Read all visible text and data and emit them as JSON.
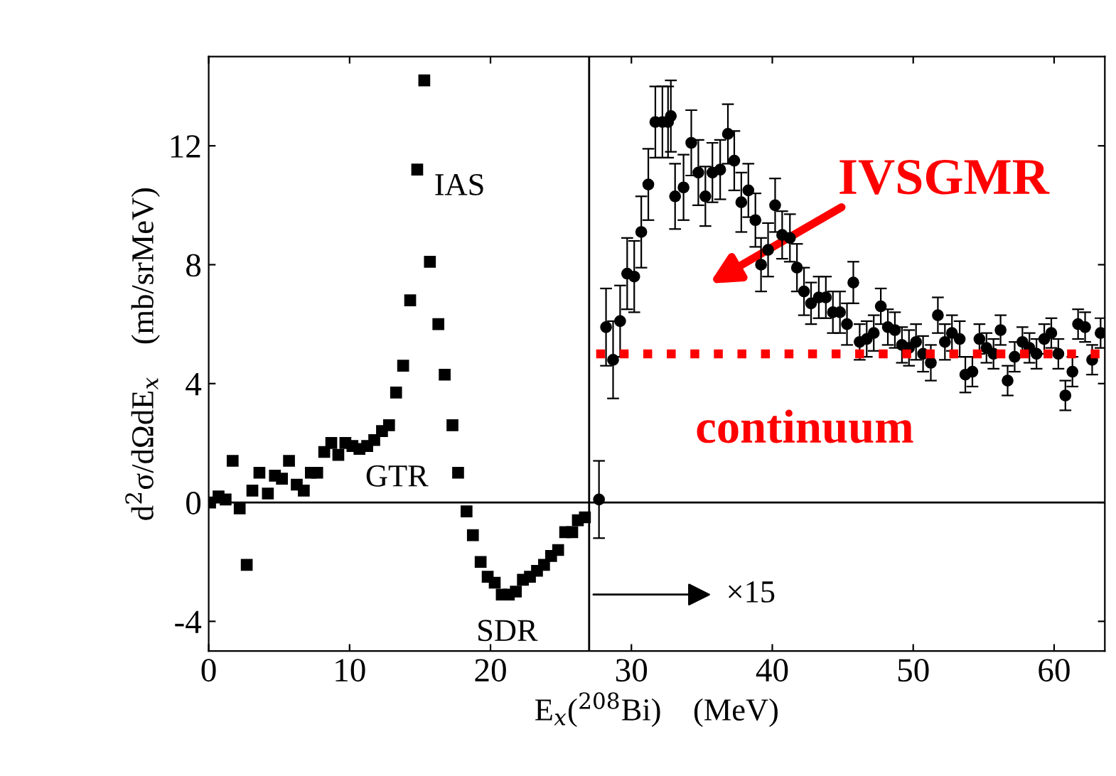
{
  "chart_data": {
    "type": "scatter",
    "xlabel": "E$_{x}$($^{208}$Bi)    (MeV)",
    "ylabel": "d$^{2}$σ/dΩdE$_{x}$    (mb/srMeV)",
    "xlim": [
      0,
      63.6
    ],
    "ylim": [
      -5,
      15
    ],
    "xticks": [
      0,
      10,
      20,
      30,
      40,
      50,
      60
    ],
    "yticks": [
      -4,
      0,
      4,
      8,
      12
    ],
    "grid": false,
    "legend": false,
    "series": [
      {
        "color": "#000000",
        "marker": "square",
        "x": [
          0.1,
          0.7,
          1.2,
          1.7,
          2.2,
          2.7,
          3.1,
          3.6,
          4.2,
          4.7,
          5.2,
          5.7,
          6.25,
          6.75,
          7.25,
          7.7,
          8.2,
          8.7,
          9.2,
          9.7,
          10.2,
          10.7,
          11.25,
          11.75,
          12.3,
          12.8,
          13.3,
          13.8,
          14.3,
          14.8,
          15.3,
          15.7,
          16.3,
          16.75,
          17.3,
          17.7,
          18.3,
          18.75,
          19.3,
          19.8,
          20.3,
          20.8,
          21.3,
          21.8,
          22.3,
          22.8,
          23.3,
          23.8,
          24.3,
          24.8,
          25.3,
          25.8,
          26.2,
          26.7
        ],
        "values": [
          0.0,
          0.2,
          0.1,
          1.4,
          -0.2,
          -2.1,
          0.4,
          1.0,
          0.3,
          0.9,
          0.8,
          1.4,
          0.6,
          0.4,
          1.0,
          1.0,
          1.7,
          2.0,
          1.6,
          2.0,
          1.9,
          1.8,
          1.9,
          2.1,
          2.4,
          2.6,
          3.7,
          4.6,
          6.8,
          11.2,
          14.2,
          8.1,
          6.0,
          4.3,
          2.6,
          1.0,
          -0.3,
          -1.1,
          -2.0,
          -2.5,
          -2.7,
          -3.1,
          -3.1,
          -3.0,
          -2.6,
          -2.5,
          -2.3,
          -2.1,
          -1.8,
          -1.6,
          -1.0,
          -1.0,
          -0.6,
          -0.5
        ]
      },
      {
        "color": "#000000",
        "marker": "circle",
        "x": [
          27.7,
          28.2,
          28.7,
          29.2,
          29.7,
          30.2,
          30.7,
          31.2,
          31.7,
          32.2,
          32.6,
          32.8,
          33.1,
          33.7,
          34.25,
          34.75,
          35.25,
          35.75,
          36.3,
          36.85,
          37.3,
          37.8,
          38.3,
          38.8,
          39.2,
          39.7,
          40.2,
          40.7,
          41.25,
          41.75,
          42.25,
          42.75,
          43.3,
          43.8,
          44.3,
          44.8,
          45.3,
          45.75,
          46.2,
          46.7,
          47.2,
          47.7,
          48.2,
          48.7,
          49.2,
          49.7,
          50.2,
          50.7,
          51.25,
          51.75,
          52.25,
          52.75,
          53.3,
          53.7,
          54.2,
          54.7,
          55.2,
          55.7,
          56.2,
          56.7,
          57.2,
          57.75,
          58.25,
          58.75,
          59.3,
          59.8,
          60.3,
          60.8,
          61.3,
          61.7,
          62.2,
          62.7,
          63.3
        ],
        "values": [
          0.1,
          5.9,
          4.8,
          6.1,
          7.7,
          7.6,
          9.1,
          10.7,
          12.8,
          12.8,
          12.8,
          13.0,
          10.3,
          10.6,
          12.1,
          11.1,
          10.3,
          11.1,
          11.2,
          12.4,
          11.5,
          10.1,
          10.5,
          9.5,
          8.0,
          8.5,
          10.0,
          9.0,
          8.9,
          7.9,
          7.1,
          6.7,
          6.9,
          6.9,
          6.4,
          6.4,
          6.0,
          7.4,
          5.4,
          5.5,
          5.7,
          6.6,
          5.9,
          5.8,
          5.3,
          5.2,
          5.4,
          5.0,
          4.7,
          6.3,
          5.4,
          5.7,
          5.5,
          4.3,
          4.4,
          5.5,
          5.2,
          5.0,
          5.8,
          4.1,
          4.9,
          5.4,
          5.2,
          5.0,
          5.5,
          5.7,
          5.0,
          3.6,
          4.4,
          6.0,
          5.9,
          4.8,
          5.7
        ],
        "errors": [
          1.3,
          1.3,
          1.3,
          1.2,
          1.2,
          1.2,
          1.2,
          1.2,
          1.2,
          1.2,
          1.2,
          1.2,
          1.1,
          1.1,
          1.1,
          1.1,
          1.0,
          1.0,
          1.0,
          1.0,
          1.0,
          1.0,
          0.9,
          0.9,
          0.9,
          0.9,
          0.9,
          0.8,
          0.8,
          0.8,
          0.8,
          0.7,
          0.7,
          0.7,
          0.7,
          0.7,
          0.7,
          0.7,
          0.6,
          0.6,
          0.6,
          0.6,
          0.6,
          0.6,
          0.6,
          0.6,
          0.6,
          0.6,
          0.6,
          0.6,
          0.6,
          0.6,
          0.6,
          0.6,
          0.5,
          0.5,
          0.5,
          0.5,
          0.5,
          0.5,
          0.5,
          0.5,
          0.5,
          0.5,
          0.5,
          0.5,
          0.5,
          0.5,
          0.5,
          0.5,
          0.5,
          0.5,
          0.5
        ]
      },
      {
        "type": "line",
        "color": "#ff0000",
        "line_style": "dotted",
        "marker": "none",
        "x": [
          27.5,
          63.6
        ],
        "values": [
          5.0,
          5.0
        ]
      }
    ],
    "ref_lines": [
      {
        "axis": "x",
        "value": 27,
        "color": "#000000"
      },
      {
        "axis": "y",
        "value": 0,
        "color": "#000000"
      }
    ],
    "annotations": [
      "IAS",
      "GTR",
      "SDR",
      "×15",
      "IVSGMR",
      "continuum"
    ]
  }
}
